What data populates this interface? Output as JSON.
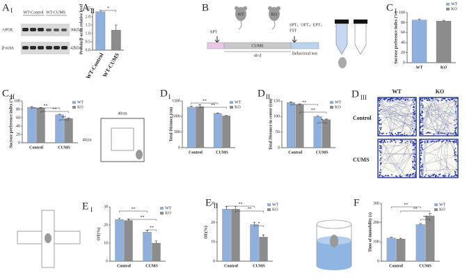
{
  "figure": {
    "A1": {
      "panel": "A",
      "sub": "I",
      "lanes": [
        "WT-Control",
        "WT-CUMS"
      ],
      "proteins": [
        "APOE",
        "β-actin"
      ],
      "sizes": [
        "36kDa",
        "42kDa"
      ]
    },
    "B": {
      "panel": "B",
      "mice": [
        "WT",
        "KO"
      ],
      "start": "SPT",
      "stage": "CUMS",
      "duration": "40 d",
      "tests": [
        "SPT、OFT、EPT、",
        "FST"
      ],
      "behavior": "Behavioral test"
    },
    "OF": {
      "width": "40cm",
      "height": "40cm"
    },
    "D3": {
      "panel": "D",
      "sub": "III",
      "cols": [
        "WT",
        "KO"
      ],
      "rows": [
        "Control",
        "CUMS"
      ]
    }
  },
  "chart_data": [
    {
      "type": "bar",
      "panel": "A",
      "sub": "II",
      "ylabel": "Protein/β-actin relative level",
      "categories": [
        "WT-Control",
        "WT-CUMS"
      ],
      "values": [
        2.3,
        1.2
      ],
      "errors": [
        0.08,
        0.3
      ],
      "colors": [
        "#8fb0dc",
        "#8c8c8c"
      ],
      "ylim": [
        0,
        2.5
      ],
      "yticks": [
        {
          "value": 0,
          "label": "0.0"
        },
        {
          "value": 0.5,
          "label": "0.5"
        },
        {
          "value": 1,
          "label": "1.0"
        },
        {
          "value": 1.5,
          "label": "1.5"
        },
        {
          "value": 2,
          "label": "2.0"
        },
        {
          "value": 2.5,
          "label": "2.5"
        }
      ],
      "annotations": [
        "*"
      ]
    },
    {
      "type": "bar",
      "panel": "C",
      "sub": "I",
      "ylabel": "Sucrose preference index (%)",
      "categories": [
        "WT",
        "KO"
      ],
      "values": [
        85,
        83
      ],
      "errors": [
        1.5,
        1.5
      ],
      "colors": [
        "#8fb0dc",
        "#8c8c8c"
      ],
      "ylim": [
        0,
        100
      ],
      "yticks": [
        0,
        20,
        40,
        60,
        80,
        100
      ],
      "legend": true,
      "annotations": []
    },
    {
      "type": "grouped-bar",
      "panel": "C",
      "sub": "II",
      "ylabel": "Sucrose preference index (%)",
      "categories": [
        "Control",
        "CUMS"
      ],
      "series": [
        {
          "name": "WT",
          "color": "#8fb0dc",
          "values": [
            85,
            67
          ],
          "errors": [
            1.5,
            1.5
          ]
        },
        {
          "name": "KO",
          "color": "#8c8c8c",
          "values": [
            83,
            58
          ],
          "errors": [
            1.5,
            1.5
          ]
        }
      ],
      "ylim": [
        0,
        100
      ],
      "yticks": [
        0,
        20,
        40,
        60,
        80,
        100
      ],
      "annotations": [
        "**",
        "**",
        "**"
      ]
    },
    {
      "type": "grouped-bar",
      "panel": "D",
      "sub": "I",
      "ylabel": "Total Distance (cm)",
      "categories": [
        "Control",
        "CUMS"
      ],
      "series": [
        {
          "name": "WT",
          "color": "#8fb0dc",
          "values": [
            1300,
            1100
          ],
          "errors": [
            30,
            15
          ]
        },
        {
          "name": "KO",
          "color": "#8c8c8c",
          "values": [
            1320,
            1020
          ],
          "errors": [
            60,
            15
          ]
        }
      ],
      "ylim": [
        0,
        1500
      ],
      "yticks": [
        0,
        500,
        1000,
        1500
      ],
      "annotations": [
        "**",
        "**"
      ]
    },
    {
      "type": "grouped-bar",
      "panel": "D",
      "sub": "II",
      "ylabel": "Total Distance in center (cm)",
      "categories": [
        "Control",
        "CUMS"
      ],
      "series": [
        {
          "name": "WT",
          "color": "#8fb0dc",
          "values": [
            145,
            100
          ],
          "errors": [
            2,
            3
          ]
        },
        {
          "name": "KO",
          "color": "#8c8c8c",
          "values": [
            138,
            90
          ],
          "errors": [
            3,
            2
          ]
        }
      ],
      "ylim": [
        0,
        150
      ],
      "yticks": [
        0,
        50,
        100,
        150
      ],
      "annotations": [
        "**",
        "**",
        "*"
      ]
    },
    {
      "type": "grouped-bar",
      "panel": "E",
      "sub": "I",
      "ylabel": "OT(%)",
      "categories": [
        "Control",
        "CUMS"
      ],
      "series": [
        {
          "name": "WT",
          "color": "#8fb0dc",
          "values": [
            23,
            16
          ],
          "errors": [
            0.8,
            1.2
          ]
        },
        {
          "name": "KO",
          "color": "#8c8c8c",
          "values": [
            22.5,
            10
          ],
          "errors": [
            0.8,
            1.2
          ]
        }
      ],
      "ylim": [
        0,
        30
      ],
      "yticks": [
        0,
        10,
        20,
        30
      ],
      "annotations": [
        "**",
        "**",
        "**"
      ]
    },
    {
      "type": "grouped-bar",
      "panel": "E",
      "sub": "II",
      "ylabel": "OE(%)",
      "categories": [
        "Control",
        "CUMS"
      ],
      "series": [
        {
          "name": "WT",
          "color": "#8fb0dc",
          "values": [
            27,
            19
          ],
          "errors": [
            1.5,
            1.2
          ]
        },
        {
          "name": "KO",
          "color": "#8c8c8c",
          "values": [
            27,
            12.5
          ],
          "errors": [
            1.5,
            1.2
          ]
        }
      ],
      "ylim": [
        0,
        30
      ],
      "yticks": [
        0,
        10,
        20,
        30
      ],
      "annotations": [
        "**",
        "**",
        "*"
      ]
    },
    {
      "type": "grouped-bar",
      "panel": "F",
      "sub": "",
      "ylabel": "Time of immobility (s)",
      "categories": [
        "Control",
        "CUMS"
      ],
      "series": [
        {
          "name": "WT",
          "color": "#8fb0dc",
          "values": [
            120,
            190
          ],
          "errors": [
            4,
            5
          ]
        },
        {
          "name": "KO",
          "color": "#8c8c8c",
          "values": [
            115,
            235
          ],
          "errors": [
            4,
            12
          ]
        }
      ],
      "ylim": [
        0,
        300
      ],
      "yticks": [
        0,
        100,
        200,
        300
      ],
      "annotations": [
        "**",
        "**",
        "**"
      ]
    }
  ]
}
